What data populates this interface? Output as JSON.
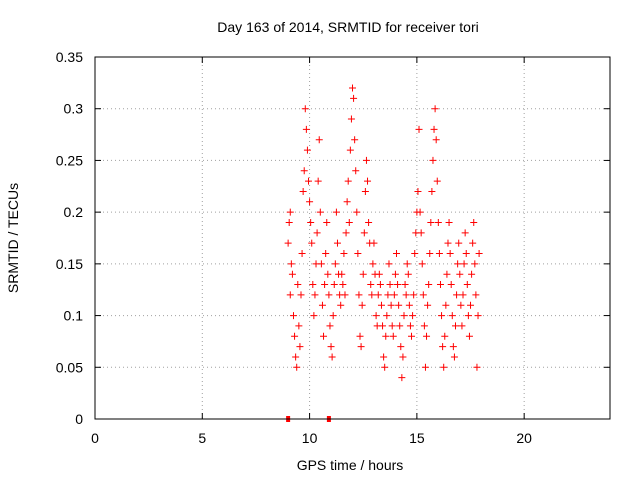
{
  "chart_data": {
    "type": "scatter",
    "title": "Day 163 of 2014, SRMTID for receiver tori",
    "xlabel": "GPS time / hours",
    "ylabel": "SRMTID / TECUs",
    "xlim": [
      0,
      24
    ],
    "ylim": [
      0,
      0.35
    ],
    "xticks": [
      0,
      5,
      10,
      15,
      20
    ],
    "yticks": [
      0,
      0.05,
      0.1,
      0.15,
      0.2,
      0.25,
      0.3,
      0.35
    ],
    "xtick_labels": [
      "0",
      "5",
      "10",
      "15",
      "20"
    ],
    "ytick_labels": [
      "0",
      "0.05",
      "0.1",
      "0.15",
      "0.2",
      "0.25",
      "0.3",
      "0.35"
    ],
    "grid": true,
    "marker": "+",
    "color": "#ff0000",
    "zero_markers": [
      9.0,
      10.9
    ],
    "points": [
      [
        9.0,
        0.17
      ],
      [
        9.05,
        0.19
      ],
      [
        9.1,
        0.2
      ],
      [
        9.1,
        0.12
      ],
      [
        9.15,
        0.15
      ],
      [
        9.2,
        0.14
      ],
      [
        9.25,
        0.1
      ],
      [
        9.3,
        0.08
      ],
      [
        9.35,
        0.06
      ],
      [
        9.4,
        0.05
      ],
      [
        9.45,
        0.13
      ],
      [
        9.5,
        0.09
      ],
      [
        9.55,
        0.07
      ],
      [
        9.6,
        0.12
      ],
      [
        9.65,
        0.16
      ],
      [
        9.7,
        0.22
      ],
      [
        9.75,
        0.24
      ],
      [
        9.8,
        0.3
      ],
      [
        9.85,
        0.28
      ],
      [
        9.9,
        0.26
      ],
      [
        9.95,
        0.23
      ],
      [
        10.0,
        0.21
      ],
      [
        10.05,
        0.19
      ],
      [
        10.1,
        0.17
      ],
      [
        10.15,
        0.13
      ],
      [
        10.2,
        0.1
      ],
      [
        10.25,
        0.12
      ],
      [
        10.3,
        0.15
      ],
      [
        10.35,
        0.18
      ],
      [
        10.4,
        0.23
      ],
      [
        10.45,
        0.27
      ],
      [
        10.5,
        0.2
      ],
      [
        10.55,
        0.15
      ],
      [
        10.6,
        0.11
      ],
      [
        10.65,
        0.08
      ],
      [
        10.7,
        0.13
      ],
      [
        10.75,
        0.16
      ],
      [
        10.8,
        0.19
      ],
      [
        10.85,
        0.14
      ],
      [
        10.9,
        0.12
      ],
      [
        10.95,
        0.09
      ],
      [
        11.0,
        0.07
      ],
      [
        11.05,
        0.06
      ],
      [
        11.1,
        0.1
      ],
      [
        11.15,
        0.13
      ],
      [
        11.2,
        0.15
      ],
      [
        11.25,
        0.2
      ],
      [
        11.3,
        0.17
      ],
      [
        11.35,
        0.14
      ],
      [
        11.4,
        0.12
      ],
      [
        11.45,
        0.11
      ],
      [
        11.5,
        0.14
      ],
      [
        11.55,
        0.13
      ],
      [
        11.6,
        0.16
      ],
      [
        11.65,
        0.12
      ],
      [
        11.7,
        0.18
      ],
      [
        11.75,
        0.21
      ],
      [
        11.8,
        0.23
      ],
      [
        11.85,
        0.19
      ],
      [
        11.9,
        0.26
      ],
      [
        11.95,
        0.29
      ],
      [
        12.0,
        0.32
      ],
      [
        12.05,
        0.31
      ],
      [
        12.1,
        0.27
      ],
      [
        12.15,
        0.24
      ],
      [
        12.2,
        0.2
      ],
      [
        12.25,
        0.16
      ],
      [
        12.3,
        0.12
      ],
      [
        12.35,
        0.08
      ],
      [
        12.4,
        0.07
      ],
      [
        12.45,
        0.11
      ],
      [
        12.5,
        0.14
      ],
      [
        12.55,
        0.18
      ],
      [
        12.6,
        0.22
      ],
      [
        12.65,
        0.25
      ],
      [
        12.7,
        0.23
      ],
      [
        12.75,
        0.19
      ],
      [
        12.8,
        0.17
      ],
      [
        12.85,
        0.13
      ],
      [
        12.9,
        0.12
      ],
      [
        12.95,
        0.15
      ],
      [
        13.0,
        0.17
      ],
      [
        13.05,
        0.14
      ],
      [
        13.1,
        0.1
      ],
      [
        13.15,
        0.09
      ],
      [
        13.2,
        0.12
      ],
      [
        13.25,
        0.14
      ],
      [
        13.3,
        0.13
      ],
      [
        13.35,
        0.11
      ],
      [
        13.4,
        0.09
      ],
      [
        13.45,
        0.06
      ],
      [
        13.5,
        0.05
      ],
      [
        13.55,
        0.08
      ],
      [
        13.6,
        0.1
      ],
      [
        13.65,
        0.12
      ],
      [
        13.7,
        0.15
      ],
      [
        13.75,
        0.13
      ],
      [
        13.8,
        0.11
      ],
      [
        13.85,
        0.09
      ],
      [
        13.9,
        0.08
      ],
      [
        13.95,
        0.12
      ],
      [
        14.0,
        0.14
      ],
      [
        14.05,
        0.16
      ],
      [
        14.1,
        0.13
      ],
      [
        14.15,
        0.11
      ],
      [
        14.2,
        0.09
      ],
      [
        14.25,
        0.07
      ],
      [
        14.3,
        0.04
      ],
      [
        14.35,
        0.06
      ],
      [
        14.4,
        0.1
      ],
      [
        14.45,
        0.13
      ],
      [
        14.5,
        0.12
      ],
      [
        14.55,
        0.15
      ],
      [
        14.6,
        0.14
      ],
      [
        14.65,
        0.11
      ],
      [
        14.7,
        0.09
      ],
      [
        14.75,
        0.08
      ],
      [
        14.8,
        0.1
      ],
      [
        14.85,
        0.12
      ],
      [
        14.9,
        0.16
      ],
      [
        14.95,
        0.18
      ],
      [
        15.0,
        0.2
      ],
      [
        15.05,
        0.22
      ],
      [
        15.1,
        0.28
      ],
      [
        15.15,
        0.2
      ],
      [
        15.2,
        0.18
      ],
      [
        15.25,
        0.15
      ],
      [
        15.3,
        0.12
      ],
      [
        15.35,
        0.09
      ],
      [
        15.4,
        0.05
      ],
      [
        15.45,
        0.08
      ],
      [
        15.5,
        0.11
      ],
      [
        15.55,
        0.13
      ],
      [
        15.6,
        0.16
      ],
      [
        15.65,
        0.19
      ],
      [
        15.7,
        0.22
      ],
      [
        15.75,
        0.25
      ],
      [
        15.8,
        0.28
      ],
      [
        15.85,
        0.3
      ],
      [
        15.9,
        0.27
      ],
      [
        15.95,
        0.23
      ],
      [
        16.0,
        0.19
      ],
      [
        16.05,
        0.16
      ],
      [
        16.1,
        0.13
      ],
      [
        16.15,
        0.1
      ],
      [
        16.2,
        0.07
      ],
      [
        16.25,
        0.05
      ],
      [
        16.3,
        0.08
      ],
      [
        16.35,
        0.11
      ],
      [
        16.4,
        0.14
      ],
      [
        16.45,
        0.17
      ],
      [
        16.5,
        0.19
      ],
      [
        16.55,
        0.16
      ],
      [
        16.6,
        0.13
      ],
      [
        16.65,
        0.1
      ],
      [
        16.7,
        0.07
      ],
      [
        16.75,
        0.06
      ],
      [
        16.8,
        0.09
      ],
      [
        16.85,
        0.12
      ],
      [
        16.9,
        0.15
      ],
      [
        16.95,
        0.17
      ],
      [
        17.0,
        0.14
      ],
      [
        17.05,
        0.11
      ],
      [
        17.1,
        0.09
      ],
      [
        17.15,
        0.12
      ],
      [
        17.2,
        0.15
      ],
      [
        17.25,
        0.18
      ],
      [
        17.3,
        0.16
      ],
      [
        17.35,
        0.13
      ],
      [
        17.4,
        0.1
      ],
      [
        17.45,
        0.08
      ],
      [
        17.5,
        0.11
      ],
      [
        17.55,
        0.14
      ],
      [
        17.6,
        0.17
      ],
      [
        17.65,
        0.19
      ],
      [
        17.7,
        0.15
      ],
      [
        17.75,
        0.12
      ],
      [
        17.8,
        0.05
      ],
      [
        17.85,
        0.1
      ],
      [
        17.9,
        0.16
      ]
    ]
  }
}
